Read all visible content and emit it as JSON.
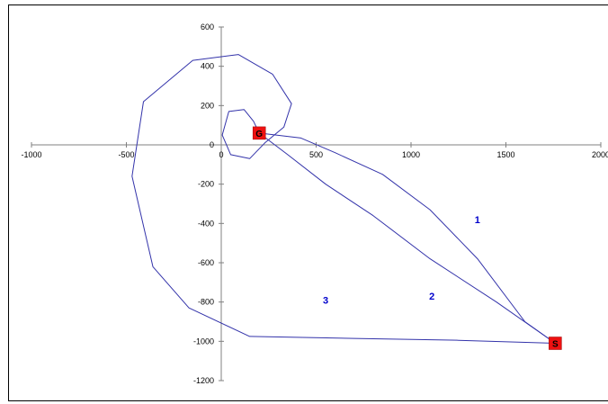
{
  "chart_data": {
    "type": "line",
    "title": "",
    "xlabel": "",
    "ylabel": "",
    "xlim": [
      -1000,
      2000
    ],
    "ylim": [
      -1200,
      600
    ],
    "x_ticks": [
      -1000,
      -500,
      0,
      500,
      1000,
      1500,
      2000
    ],
    "y_ticks": [
      600,
      400,
      200,
      0,
      -200,
      -400,
      -600,
      -800,
      -1000,
      -1200
    ],
    "x_tick_labels": [
      "-1000",
      "-500",
      "0",
      "500",
      "1000",
      "1500",
      "2000"
    ],
    "y_tick_labels": [
      "600",
      "400",
      "200",
      "0",
      "-200",
      "-400",
      "-600",
      "-800",
      "-1000",
      "-1200"
    ],
    "grid": false,
    "line_color": "#3333aa",
    "label_color": "#0000cc",
    "marker_color": "#ee1111",
    "series": [
      {
        "name": "1",
        "label_at": [
          1350,
          -380
        ],
        "points": [
          [
            1760,
            -1010
          ],
          [
            1600,
            -900
          ],
          [
            1350,
            -580
          ],
          [
            1100,
            -330
          ],
          [
            850,
            -150
          ],
          [
            600,
            -40
          ],
          [
            420,
            35
          ],
          [
            200,
            60
          ]
        ]
      },
      {
        "name": "2",
        "label_at": [
          1110,
          -770
        ],
        "points": [
          [
            1760,
            -1010
          ],
          [
            1450,
            -800
          ],
          [
            1100,
            -580
          ],
          [
            800,
            -360
          ],
          [
            550,
            -200
          ],
          [
            350,
            -50
          ],
          [
            200,
            60
          ]
        ]
      },
      {
        "name": "3",
        "label_at": [
          550,
          -790
        ],
        "points": [
          [
            1760,
            -1010
          ],
          [
            1250,
            -995
          ],
          [
            700,
            -985
          ],
          [
            150,
            -975
          ],
          [
            -170,
            -830
          ],
          [
            -360,
            -620
          ],
          [
            -470,
            -160
          ],
          [
            -410,
            220
          ],
          [
            -150,
            430
          ],
          [
            90,
            460
          ],
          [
            270,
            360
          ],
          [
            370,
            210
          ],
          [
            330,
            90
          ],
          [
            230,
            10
          ],
          [
            150,
            -70
          ],
          [
            50,
            -50
          ],
          [
            5,
            50
          ],
          [
            40,
            170
          ],
          [
            120,
            180
          ],
          [
            170,
            120
          ],
          [
            200,
            60
          ]
        ]
      }
    ],
    "markers": [
      {
        "label": "G",
        "x": 200,
        "y": 60
      },
      {
        "label": "S",
        "x": 1760,
        "y": -1010
      }
    ]
  }
}
